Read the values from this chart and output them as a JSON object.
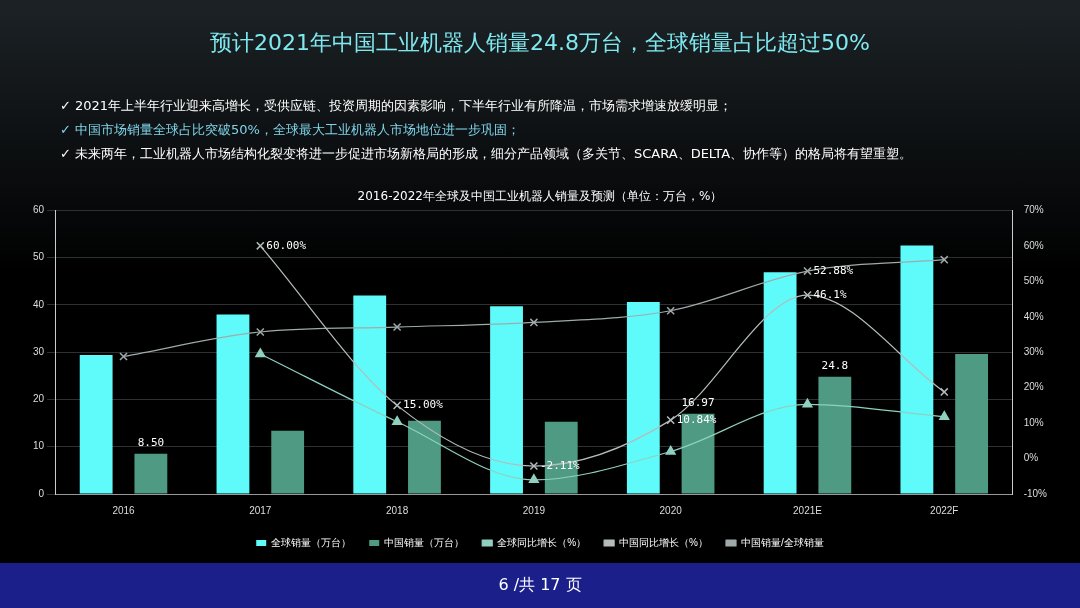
{
  "chart_data": {
    "type": "bar",
    "title": "预计2021年中国工业机器人销量24.8万台，全球销量占比超过50%",
    "subtitle": "2016-2022年全球及中国工业机器人销量及预测（单位：万台，%）",
    "annotations": [
      "✓ 2021年上半年行业迎来高增长，受供应链、投资周期的因素影响，下半年行业有所降温，市场需求增速放缓明显；",
      "✓ 中国市场销量全球占比突破50%，全球最大工业机器人市场地位进一步巩固；",
      "✓ 未来两年，工业机器人市场结构化裂变将进一步促进市场新格局的形成，细分产品领域（多关节、SCARA、DELTA、协作等）的格局将有望重塑。",
      "6 /共 17 页"
    ],
    "categories": [
      "2016",
      "2017",
      "2018",
      "2019",
      "2020",
      "2021E",
      "2022F"
    ],
    "series": [
      {
        "name": "全球销量（万台）",
        "color": "#5ffbfb",
        "values": [
          29.4,
          38,
          42,
          39.7,
          40.6,
          46.9,
          52.6
        ]
      },
      {
        "name": "中国销量（万台）",
        "color": "#4f9a82",
        "values": [
          8.5,
          13.4,
          15.5,
          15.3,
          16.97,
          24.8,
          29.6
        ],
        "value_labels": [
          "8.50",
          null,
          null,
          null,
          "16.97",
          "24.8",
          null
        ]
      },
      {
        "name": "全球同比增长（%）",
        "type": "line",
        "axis": "y2",
        "marker": "triangle",
        "color": "#8fd0c0",
        "values": [
          null,
          29.5,
          10.4,
          -6,
          2,
          15.3,
          11.8
        ]
      },
      {
        "name": "中国同比增长（%）",
        "type": "line",
        "axis": "y2",
        "marker": "cross",
        "color": "#b4bcbc",
        "values": [
          null,
          60,
          15,
          -2.11,
          10.84,
          46.1,
          18.8
        ],
        "value_labels": [
          null,
          "60.00%",
          "15.00%",
          "-2.11%",
          "10.84%",
          "46.1%",
          null
        ]
      },
      {
        "name": "中国销量/全球销量",
        "type": "line",
        "axis": "y2",
        "marker": "cross",
        "color": "#a0aaaa",
        "values": [
          28.8,
          35.7,
          37.1,
          38.4,
          41.7,
          52.88,
          56.1
        ],
        "value_labels": [
          null,
          null,
          null,
          null,
          null,
          "52.88%",
          null
        ]
      }
    ],
    "ylim": [
      0,
      60
    ],
    "yticks": [
      0,
      10,
      20,
      30,
      40,
      50,
      60
    ],
    "y2lim": [
      -10,
      70
    ],
    "y2ticks": [
      {
        "value": -10,
        "label": "-10%"
      },
      {
        "value": 0,
        "label": "0%"
      },
      {
        "value": 10,
        "label": "10%"
      },
      {
        "value": 20,
        "label": "20%"
      },
      {
        "value": 30,
        "label": "30%"
      },
      {
        "value": 40,
        "label": "40%"
      },
      {
        "value": 50,
        "label": "50%"
      },
      {
        "value": 60,
        "label": "60%"
      },
      {
        "value": 70,
        "label": "70%"
      }
    ],
    "grid": "y",
    "legend": "bottom"
  }
}
